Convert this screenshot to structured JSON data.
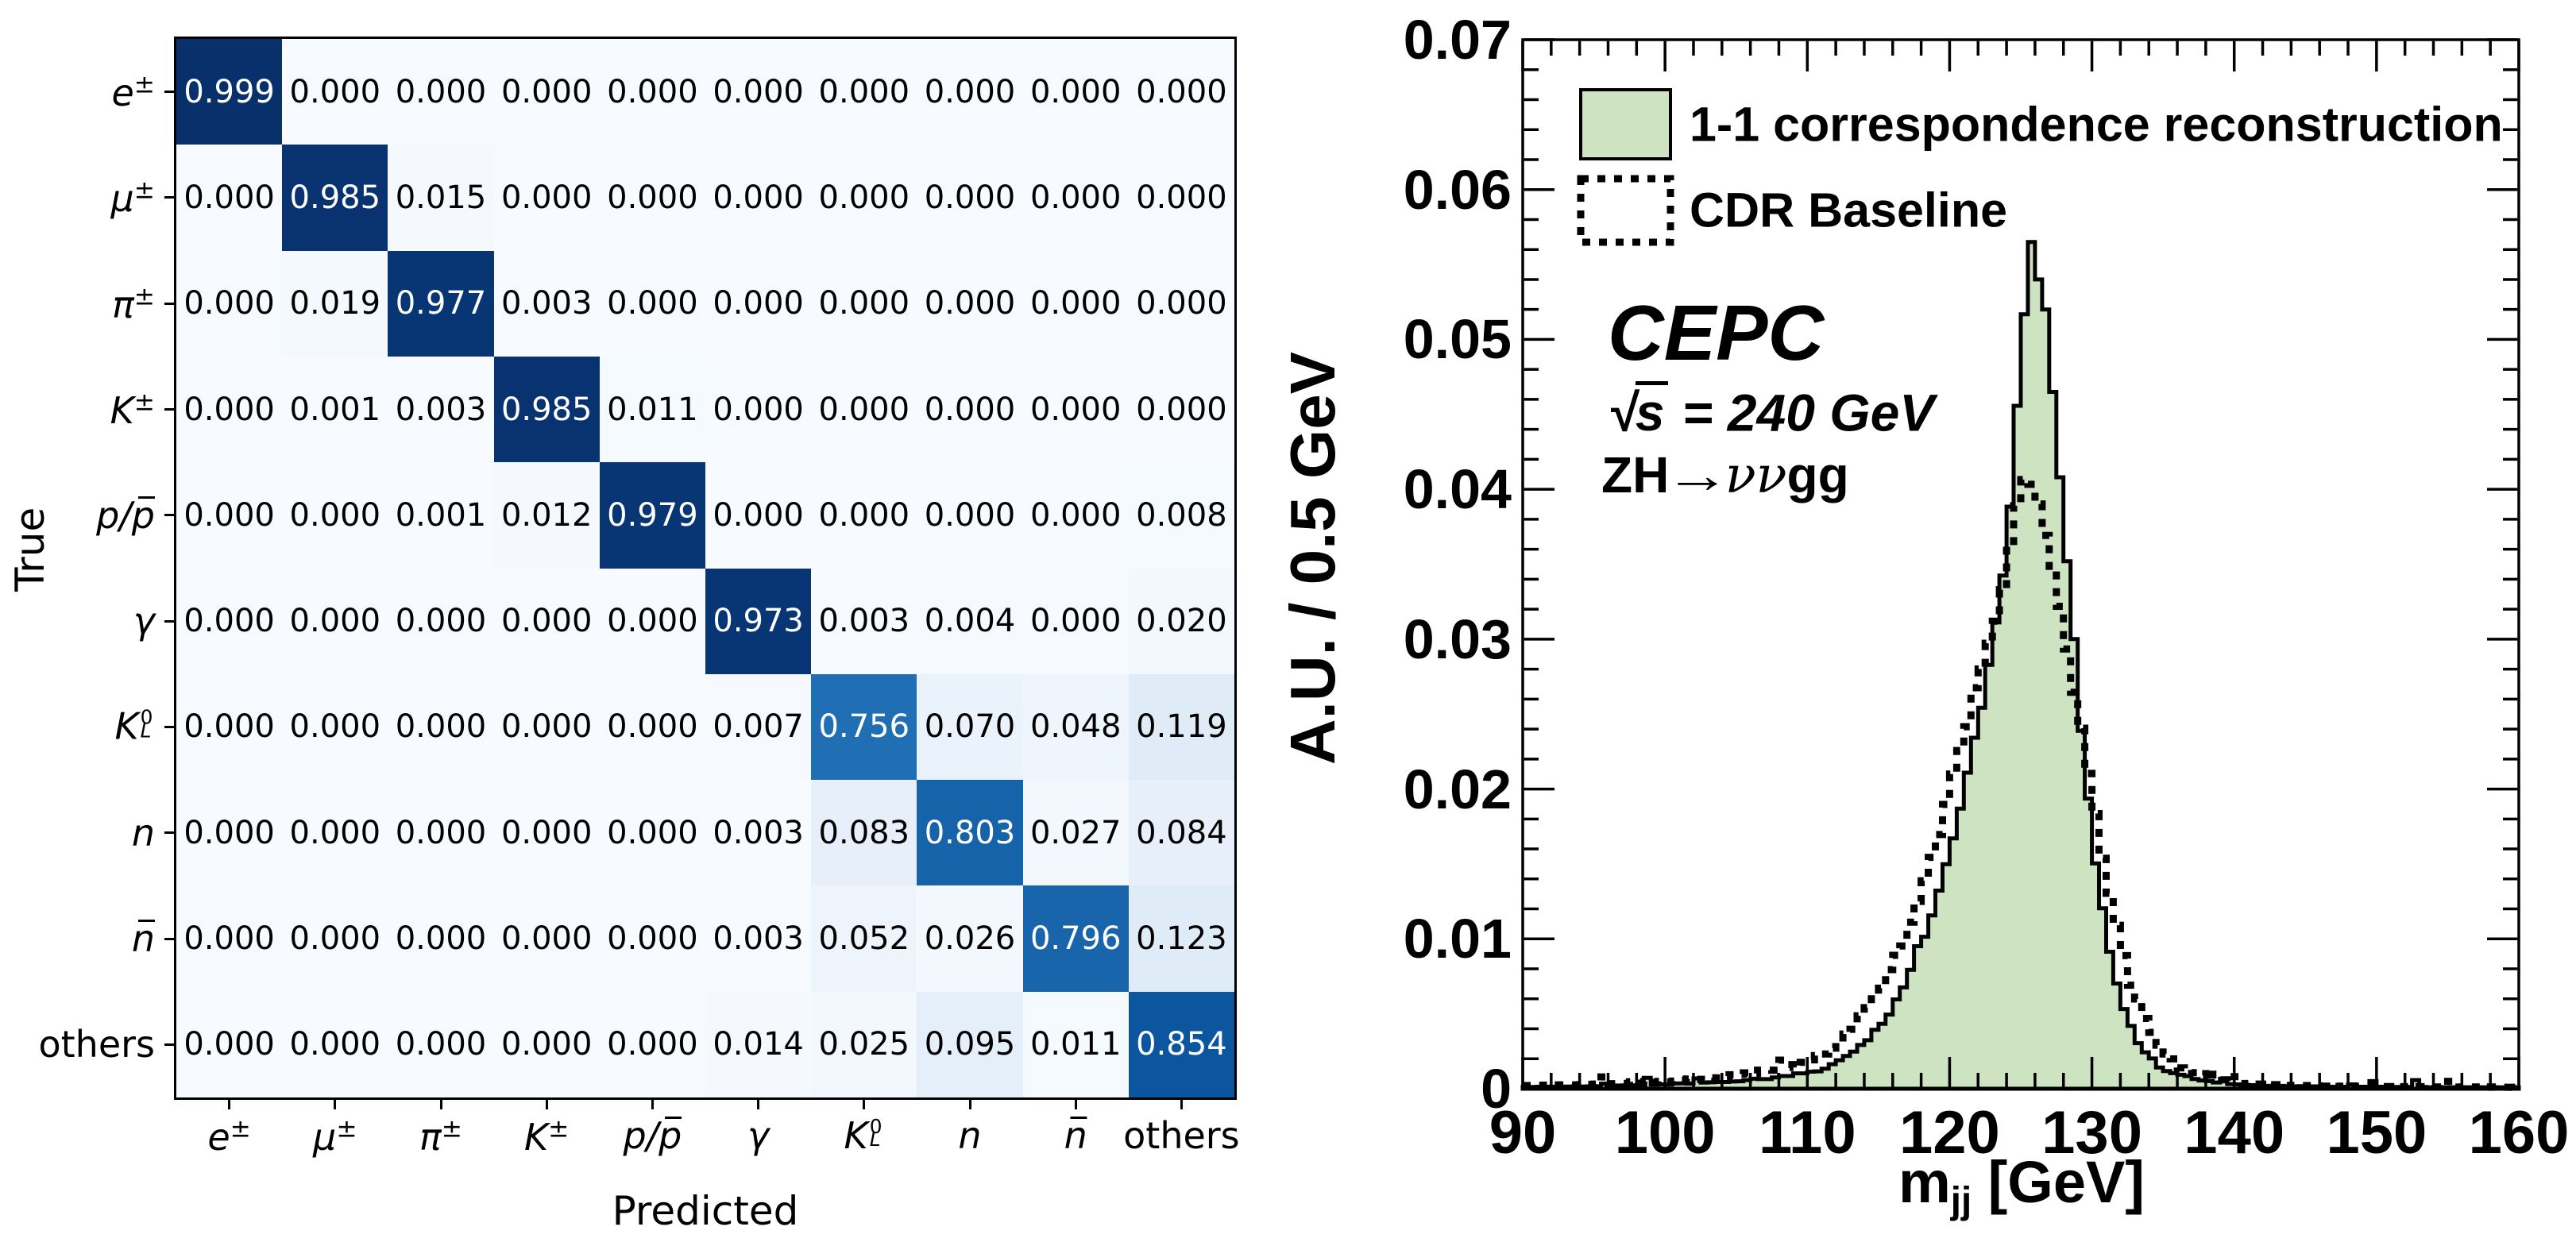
{
  "figure": {
    "background": "#ffffff"
  },
  "chart_data": [
    {
      "type": "heatmap",
      "title": "",
      "xlabel": "Predicted",
      "ylabel": "True",
      "colormap": "Blues",
      "categories": [
        "e±",
        "μ±",
        "π±",
        "K±",
        "p/p̄",
        "γ",
        "K⁰L",
        "n",
        "n̄",
        "others"
      ],
      "categories_rich": [
        [
          {
            "t": "e",
            "i": 1
          },
          {
            "sup": "±"
          }
        ],
        [
          {
            "t": "μ",
            "i": 1
          },
          {
            "sup": "±"
          }
        ],
        [
          {
            "t": "π",
            "i": 1
          },
          {
            "sup": "±"
          }
        ],
        [
          {
            "t": "K",
            "i": 1
          },
          {
            "sup": "±"
          }
        ],
        [
          {
            "t": "p",
            "i": 1
          },
          {
            "t": "/",
            "i": 1
          },
          {
            "t": "p",
            "i": 1,
            "bar": 1
          }
        ],
        [
          {
            "t": "γ",
            "i": 1
          }
        ],
        [
          {
            "t": "K",
            "i": 1
          },
          {
            "stack": [
              "0",
              "L"
            ]
          }
        ],
        [
          {
            "t": "n",
            "i": 1
          }
        ],
        [
          {
            "t": "n",
            "i": 1,
            "bar": 1
          }
        ],
        [
          {
            "t": "others"
          }
        ]
      ],
      "matrix": [
        [
          0.999,
          0.0,
          0.0,
          0.0,
          0.0,
          0.0,
          0.0,
          0.0,
          0.0,
          0.0
        ],
        [
          0.0,
          0.985,
          0.015,
          0.0,
          0.0,
          0.0,
          0.0,
          0.0,
          0.0,
          0.0
        ],
        [
          0.0,
          0.019,
          0.977,
          0.003,
          0.0,
          0.0,
          0.0,
          0.0,
          0.0,
          0.0
        ],
        [
          0.0,
          0.001,
          0.003,
          0.985,
          0.011,
          0.0,
          0.0,
          0.0,
          0.0,
          0.0
        ],
        [
          0.0,
          0.0,
          0.001,
          0.012,
          0.979,
          0.0,
          0.0,
          0.0,
          0.0,
          0.008
        ],
        [
          0.0,
          0.0,
          0.0,
          0.0,
          0.0,
          0.973,
          0.003,
          0.004,
          0.0,
          0.02
        ],
        [
          0.0,
          0.0,
          0.0,
          0.0,
          0.0,
          0.007,
          0.756,
          0.07,
          0.048,
          0.119
        ],
        [
          0.0,
          0.0,
          0.0,
          0.0,
          0.0,
          0.003,
          0.083,
          0.803,
          0.027,
          0.084
        ],
        [
          0.0,
          0.0,
          0.0,
          0.0,
          0.0,
          0.003,
          0.052,
          0.026,
          0.796,
          0.123
        ],
        [
          0.0,
          0.0,
          0.0,
          0.0,
          0.0,
          0.014,
          0.025,
          0.095,
          0.011,
          0.854
        ]
      ],
      "cell_colors": [
        [
          "#08306b",
          "#f7fbff",
          "#f7fbff",
          "#f7fbff",
          "#f7fbff",
          "#f7fbff",
          "#f7fbff",
          "#f7fbff",
          "#f7fbff",
          "#f7fbff"
        ],
        [
          "#f7fbff",
          "#083370",
          "#f5f9fe",
          "#f7fbff",
          "#f7fbff",
          "#f7fbff",
          "#f7fbff",
          "#f7fbff",
          "#f7fbff",
          "#f7fbff"
        ],
        [
          "#f7fbff",
          "#f4f9fe",
          "#083573",
          "#f7fbff",
          "#f7fbff",
          "#f7fbff",
          "#f7fbff",
          "#f7fbff",
          "#f7fbff",
          "#f7fbff"
        ],
        [
          "#f7fbff",
          "#f7fbff",
          "#f7fbff",
          "#083370",
          "#f5fafe",
          "#f7fbff",
          "#f7fbff",
          "#f7fbff",
          "#f7fbff",
          "#f7fbff"
        ],
        [
          "#f7fbff",
          "#f7fbff",
          "#f7fbff",
          "#f5f9fe",
          "#083573",
          "#f7fbff",
          "#f7fbff",
          "#f7fbff",
          "#f7fbff",
          "#f5fafe"
        ],
        [
          "#f7fbff",
          "#f7fbff",
          "#f7fbff",
          "#f7fbff",
          "#f7fbff",
          "#083674",
          "#f7fbff",
          "#f6faff",
          "#f7fbff",
          "#f3f8fe"
        ],
        [
          "#f7fbff",
          "#f7fbff",
          "#f7fbff",
          "#f7fbff",
          "#f7fbff",
          "#f6faff",
          "#206fb4",
          "#eaf2fb",
          "#eef5fc",
          "#dfecf7"
        ],
        [
          "#f7fbff",
          "#f7fbff",
          "#f7fbff",
          "#f7fbff",
          "#f7fbff",
          "#f7fbff",
          "#e7f0fa",
          "#1663aa",
          "#f2f8fd",
          "#e7f0fa"
        ],
        [
          "#f7fbff",
          "#f7fbff",
          "#f7fbff",
          "#f7fbff",
          "#f7fbff",
          "#f7fbff",
          "#edf4fc",
          "#f2f8fd",
          "#1865ac",
          "#dfebf7"
        ],
        [
          "#f7fbff",
          "#f7fbff",
          "#f7fbff",
          "#f7fbff",
          "#f7fbff",
          "#f5f9fe",
          "#f2f8fd",
          "#e4eff9",
          "#f5fafe",
          "#0c56a0"
        ]
      ],
      "value_decimals": 3,
      "text_color_threshold": 0.5,
      "text_color_above": "#ffffff",
      "text_color_below": "#000000",
      "vmin": 0.0,
      "vmax": 0.999
    },
    {
      "type": "bar",
      "subtype": "step-histogram",
      "xlabel_main": "m",
      "xlabel_sub": "jj",
      "xlabel_unit": " [GeV]",
      "ylabel": "A.U. / 0.5 GeV",
      "xlim": [
        90,
        160
      ],
      "ylim": [
        0,
        0.07
      ],
      "bin_width": 0.5,
      "x_start": 90,
      "xtick_labels": [
        "90",
        "100",
        "110",
        "120",
        "130",
        "140",
        "150",
        "160"
      ],
      "ytick_labels": [
        "0",
        "0.01",
        "0.02",
        "0.03",
        "0.04",
        "0.05",
        "0.06",
        "0.07"
      ],
      "x_major_step": 10,
      "x_minor_step": 2,
      "y_major_step": 0.01,
      "y_minor_step": 0.002,
      "grid": false,
      "legend_position": "top-left",
      "series": [
        {
          "name": "1-1 correspondence reconstruction",
          "style": "filled",
          "fill_color": "#cee3c2",
          "line_color": "#000000",
          "values": [
            0.00012,
            0.00012,
            0.00013,
            0.00014,
            0.00014,
            0.00015,
            0.00015,
            0.00016,
            0.00015,
            0.00016,
            0.00016,
            0.00034,
            0.0002,
            0.00021,
            0.00023,
            0.00023,
            0.00024,
            0.00073,
            0.00027,
            0.00029,
            0.00028,
            0.00035,
            0.00036,
            0.00034,
            0.00069,
            0.00041,
            0.00043,
            0.00045,
            0.00045,
            0.00048,
            0.0005,
            0.00058,
            0.00067,
            0.00064,
            0.00064,
            0.00076,
            0.00085,
            0.00085,
            0.00103,
            0.00103,
            0.00114,
            0.00116,
            0.00134,
            0.00164,
            0.0019,
            0.00219,
            0.00248,
            0.00292,
            0.00324,
            0.00393,
            0.00433,
            0.00495,
            0.00596,
            0.00676,
            0.00794,
            0.00951,
            0.01014,
            0.01156,
            0.01322,
            0.01498,
            0.0167,
            0.01869,
            0.02109,
            0.02342,
            0.02542,
            0.02828,
            0.03112,
            0.03425,
            0.03884,
            0.04557,
            0.05168,
            0.0565,
            0.054,
            0.052,
            0.0465,
            0.0408,
            0.0352,
            0.03001,
            0.02389,
            0.01936,
            0.01504,
            0.01204,
            0.00914,
            0.00702,
            0.00532,
            0.00419,
            0.00304,
            0.00243,
            0.00202,
            0.00142,
            0.00118,
            0.00104,
            0.00093,
            0.00084,
            0.00065,
            0.00055,
            0.00051,
            0.00042,
            0.00067,
            0.00031,
            0.00029,
            0.00026,
            0.00024,
            0.00022,
            0.0002,
            0.00019,
            0.00019,
            0.00016,
            0.00016,
            0.00017,
            0.00016,
            0.00016,
            0.00015,
            0.00013,
            0.00013,
            0.00013,
            0.00029,
            0.00013,
            0.00013,
            0.00051,
            0.00013,
            0.00011,
            0.00012,
            0.00012,
            0.00012,
            0.00058,
            0.00012,
            9e-05,
            0.00011,
            0.0001,
            9e-05,
            0.0001,
            0.0001,
            9e-05,
            0.0001,
            9e-05,
            0.0001,
            9e-05,
            9e-05,
            0.0001
          ]
        },
        {
          "name": "CDR Baseline",
          "style": "dotted",
          "line_color": "#000000",
          "values": [
            0.00021,
            0.00021,
            0.00023,
            0.00024,
            0.00025,
            0.00026,
            0.00026,
            0.00026,
            0.00027,
            0.00029,
            0.00031,
            0.00079,
            0.00034,
            0.00035,
            0.00036,
            0.00046,
            0.00037,
            0.00048,
            0.00043,
            0.00049,
            0.00045,
            0.00051,
            0.00057,
            0.00065,
            0.00063,
            0.00063,
            0.00073,
            0.00072,
            0.00084,
            0.00093,
            0.00098,
            0.00106,
            0.00102,
            0.00124,
            0.00124,
            0.00123,
            0.00191,
            0.00161,
            0.00142,
            0.00176,
            0.00193,
            0.00221,
            0.00232,
            0.00271,
            0.00305,
            0.00365,
            0.00397,
            0.00487,
            0.00541,
            0.00626,
            0.00671,
            0.00795,
            0.0089,
            0.00953,
            0.01111,
            0.0125,
            0.01388,
            0.01544,
            0.01696,
            0.01897,
            0.021,
            0.02257,
            0.02416,
            0.02676,
            0.02801,
            0.02973,
            0.0312,
            0.0333,
            0.03617,
            0.0389,
            0.04065,
            0.04033,
            0.03902,
            0.03692,
            0.03462,
            0.03219,
            0.02934,
            0.02646,
            0.02406,
            0.02104,
            0.01836,
            0.01538,
            0.01304,
            0.01091,
            0.00888,
            0.00691,
            0.00599,
            0.00469,
            0.00376,
            0.00291,
            0.00232,
            0.00199,
            0.00139,
            0.0013,
            0.00107,
            0.0009,
            0.00128,
            0.00064,
            0.0006,
            0.00049,
            0.00081,
            0.00035,
            0.0004,
            0.00031,
            0.00028,
            0.00027,
            0.00024,
            0.0002,
            0.00022,
            0.00021,
            0.00021,
            0.00019,
            0.00017,
            0.00016,
            0.00016,
            0.00017,
            0.00014,
            0.00017,
            0.00017,
            0.00015,
            0.00016,
            0.00015,
            0.00013,
            0.00014,
            0.00014,
            0.00013,
            0.00014,
            0.00012,
            0.00012,
            0.00012,
            0.00049,
            0.00011,
            0.00012,
            0.00012,
            0.00011,
            0.0001,
            0.00012,
            0.0001,
            0.0001,
            9e-05
          ]
        }
      ],
      "annotations": {
        "experiment": "CEPC",
        "sqrt_sym": "√",
        "sqrt_arg": "s",
        "energy": " = 240 GeV",
        "process_prefix": "ZH",
        "process_arrow": "→",
        "process_nu": "νν",
        "process_suffix": "gg"
      }
    }
  ]
}
